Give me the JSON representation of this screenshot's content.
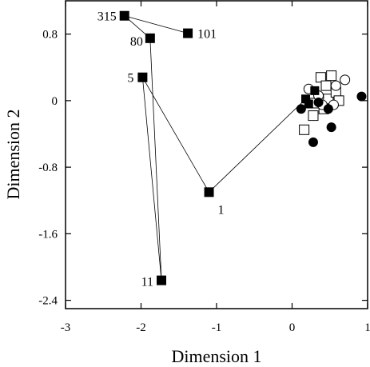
{
  "chart_data": {
    "type": "scatter",
    "xlabel": "Dimension 1",
    "ylabel": "Dimension 2",
    "xlim": [
      -3,
      1
    ],
    "ylim": [
      -2.5,
      1.2
    ],
    "xticks": [
      -3,
      -2,
      -1,
      0,
      1
    ],
    "yticks": [
      -2.4,
      -1.6,
      -0.8,
      0,
      0.8
    ],
    "xtick_labels": [
      "-3",
      "-2",
      "-1",
      "0",
      "1"
    ],
    "ytick_labels": [
      "-2.4",
      "-1.6",
      "-0.8",
      "0",
      "0.8"
    ],
    "grid": false,
    "series": [
      {
        "marker": "filled-square",
        "connected": true,
        "points": [
          {
            "label": "315",
            "x": -2.22,
            "y": 1.02
          },
          {
            "label": "101",
            "x": -1.38,
            "y": 0.81
          },
          {
            "label": "80",
            "x": -1.88,
            "y": 0.75
          },
          {
            "label": "5",
            "x": -1.98,
            "y": 0.28
          },
          {
            "label": "1",
            "x": -1.1,
            "y": -1.1
          },
          {
            "label": "11",
            "x": -1.73,
            "y": -2.16
          }
        ],
        "path_order": [
          "101",
          "315",
          "80",
          "11",
          "5",
          "1",
          "0-cluster"
        ]
      },
      {
        "marker": "filled-square",
        "points": [
          {
            "x": 0.18,
            "y": 0.02
          },
          {
            "x": 0.3,
            "y": 0.12
          },
          {
            "x": 0.22,
            "y": -0.04
          }
        ]
      },
      {
        "marker": "open-square",
        "points": [
          {
            "x": 0.38,
            "y": 0.28
          },
          {
            "x": 0.52,
            "y": 0.3
          },
          {
            "x": 0.45,
            "y": 0.18
          },
          {
            "x": 0.48,
            "y": 0.02
          },
          {
            "x": 0.58,
            "y": 0.1
          },
          {
            "x": 0.62,
            "y": 0.0
          },
          {
            "x": 0.3,
            "y": -0.03
          },
          {
            "x": 0.28,
            "y": -0.18
          },
          {
            "x": 0.42,
            "y": -0.1
          },
          {
            "x": 0.16,
            "y": -0.35
          }
        ]
      },
      {
        "marker": "open-circle",
        "points": [
          {
            "x": 0.22,
            "y": 0.14
          },
          {
            "x": 0.7,
            "y": 0.25
          },
          {
            "x": 0.58,
            "y": 0.18
          },
          {
            "x": 0.55,
            "y": -0.05
          },
          {
            "x": 0.35,
            "y": 0.06
          },
          {
            "x": 0.4,
            "y": -0.05
          }
        ]
      },
      {
        "marker": "filled-circle",
        "points": [
          {
            "x": 0.92,
            "y": 0.05
          },
          {
            "x": 0.12,
            "y": -0.1
          },
          {
            "x": 0.28,
            "y": -0.5
          },
          {
            "x": 0.52,
            "y": -0.32
          },
          {
            "x": 0.48,
            "y": -0.1
          },
          {
            "x": 0.35,
            "y": -0.02
          }
        ]
      }
    ]
  }
}
